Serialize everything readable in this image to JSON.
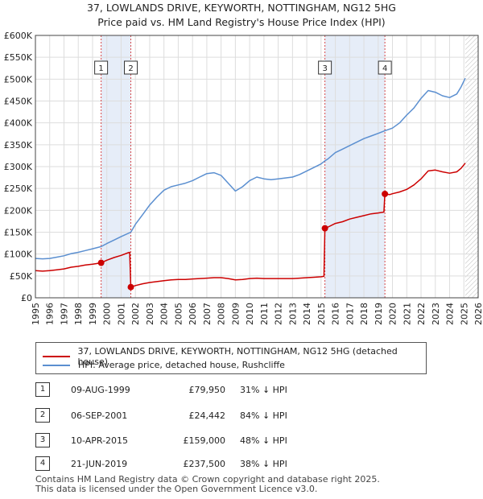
{
  "title": {
    "line1": "37, LOWLANDS DRIVE, KEYWORTH, NOTTINGHAM, NG12 5HG",
    "line2": "Price paid vs. HM Land Registry's House Price Index (HPI)"
  },
  "chart_data": {
    "type": "line",
    "title": "37, LOWLANDS DRIVE, KEYWORTH, NOTTINGHAM, NG12 5HG",
    "subtitle": "Price paid vs. HM Land Registry's House Price Index (HPI)",
    "xlim": [
      1995,
      2026
    ],
    "ylim": [
      0,
      600000
    ],
    "x_ticks": [
      "1995",
      "1996",
      "1997",
      "1998",
      "1999",
      "2000",
      "2001",
      "2002",
      "2003",
      "2004",
      "2005",
      "2006",
      "2007",
      "2008",
      "2009",
      "2010",
      "2011",
      "2012",
      "2013",
      "2014",
      "2015",
      "2016",
      "2017",
      "2018",
      "2019",
      "2020",
      "2021",
      "2022",
      "2023",
      "2024",
      "2025",
      "2026"
    ],
    "y_ticks": [
      {
        "value": 0,
        "label": "£0"
      },
      {
        "value": 50000,
        "label": "£50K"
      },
      {
        "value": 100000,
        "label": "£100K"
      },
      {
        "value": 150000,
        "label": "£150K"
      },
      {
        "value": 200000,
        "label": "£200K"
      },
      {
        "value": 250000,
        "label": "£250K"
      },
      {
        "value": 300000,
        "label": "£300K"
      },
      {
        "value": 350000,
        "label": "£350K"
      },
      {
        "value": 400000,
        "label": "£400K"
      },
      {
        "value": 450000,
        "label": "£450K"
      },
      {
        "value": 500000,
        "label": "£500K"
      },
      {
        "value": 550000,
        "label": "£550K"
      },
      {
        "value": 600000,
        "label": "£600K"
      }
    ],
    "shaded_periods": [
      [
        1999.6,
        2001.68
      ],
      [
        2015.27,
        2019.47
      ]
    ],
    "future_hatch_start": 2025.1,
    "series": [
      {
        "name": "37, LOWLANDS DRIVE, KEYWORTH, NOTTINGHAM, NG12 5HG (detached house)",
        "color": "#cc0000",
        "points": [
          [
            1995.0,
            62000
          ],
          [
            1995.5,
            61000
          ],
          [
            1996.0,
            62000
          ],
          [
            1996.5,
            64000
          ],
          [
            1997.0,
            66000
          ],
          [
            1997.5,
            70000
          ],
          [
            1998.0,
            72000
          ],
          [
            1998.5,
            75000
          ],
          [
            1999.0,
            77000
          ],
          [
            1999.6,
            79950
          ],
          [
            2000.0,
            86000
          ],
          [
            2000.5,
            92000
          ],
          [
            2001.0,
            97000
          ],
          [
            2001.5,
            103000
          ],
          [
            2001.6,
            104000
          ],
          [
            2001.68,
            24442
          ],
          [
            2002.0,
            28000
          ],
          [
            2002.5,
            32000
          ],
          [
            2003.0,
            35000
          ],
          [
            2003.5,
            37000
          ],
          [
            2004.0,
            39000
          ],
          [
            2004.5,
            41000
          ],
          [
            2005.0,
            42000
          ],
          [
            2005.5,
            42000
          ],
          [
            2006.0,
            43000
          ],
          [
            2006.5,
            44000
          ],
          [
            2007.0,
            45000
          ],
          [
            2007.5,
            46000
          ],
          [
            2008.0,
            46000
          ],
          [
            2008.5,
            44000
          ],
          [
            2009.0,
            41000
          ],
          [
            2009.5,
            42000
          ],
          [
            2010.0,
            44000
          ],
          [
            2010.5,
            45000
          ],
          [
            2011.0,
            44000
          ],
          [
            2011.5,
            44000
          ],
          [
            2012.0,
            44000
          ],
          [
            2012.5,
            44000
          ],
          [
            2013.0,
            44000
          ],
          [
            2013.5,
            45000
          ],
          [
            2014.0,
            46000
          ],
          [
            2014.5,
            47000
          ],
          [
            2015.0,
            48000
          ],
          [
            2015.2,
            49000
          ],
          [
            2015.27,
            159000
          ],
          [
            2015.5,
            162000
          ],
          [
            2016.0,
            170000
          ],
          [
            2016.5,
            174000
          ],
          [
            2017.0,
            180000
          ],
          [
            2017.5,
            184000
          ],
          [
            2018.0,
            188000
          ],
          [
            2018.5,
            192000
          ],
          [
            2019.0,
            194000
          ],
          [
            2019.4,
            196000
          ],
          [
            2019.47,
            237500
          ],
          [
            2019.8,
            236000
          ],
          [
            2020.0,
            238000
          ],
          [
            2020.5,
            242000
          ],
          [
            2021.0,
            248000
          ],
          [
            2021.5,
            258000
          ],
          [
            2022.0,
            272000
          ],
          [
            2022.5,
            290000
          ],
          [
            2023.0,
            292000
          ],
          [
            2023.5,
            288000
          ],
          [
            2024.0,
            285000
          ],
          [
            2024.5,
            288000
          ],
          [
            2024.8,
            296000
          ],
          [
            2025.1,
            308000
          ]
        ]
      },
      {
        "name": "HPI: Average price, detached house, Rushcliffe",
        "color": "#5b8fd0",
        "points": [
          [
            1995.0,
            90000
          ],
          [
            1995.5,
            89000
          ],
          [
            1996.0,
            90000
          ],
          [
            1996.5,
            93000
          ],
          [
            1997.0,
            96000
          ],
          [
            1997.5,
            101000
          ],
          [
            1998.0,
            104000
          ],
          [
            1998.5,
            108000
          ],
          [
            1999.0,
            112000
          ],
          [
            1999.6,
            117000
          ],
          [
            2000.0,
            124000
          ],
          [
            2000.5,
            132000
          ],
          [
            2001.0,
            140000
          ],
          [
            2001.68,
            150000
          ],
          [
            2002.0,
            168000
          ],
          [
            2002.5,
            190000
          ],
          [
            2003.0,
            212000
          ],
          [
            2003.5,
            230000
          ],
          [
            2004.0,
            246000
          ],
          [
            2004.5,
            254000
          ],
          [
            2005.0,
            258000
          ],
          [
            2005.5,
            262000
          ],
          [
            2006.0,
            268000
          ],
          [
            2006.5,
            276000
          ],
          [
            2007.0,
            284000
          ],
          [
            2007.5,
            286000
          ],
          [
            2008.0,
            280000
          ],
          [
            2008.5,
            262000
          ],
          [
            2009.0,
            244000
          ],
          [
            2009.5,
            254000
          ],
          [
            2010.0,
            268000
          ],
          [
            2010.5,
            276000
          ],
          [
            2011.0,
            272000
          ],
          [
            2011.5,
            270000
          ],
          [
            2012.0,
            272000
          ],
          [
            2012.5,
            274000
          ],
          [
            2013.0,
            276000
          ],
          [
            2013.5,
            282000
          ],
          [
            2014.0,
            290000
          ],
          [
            2014.5,
            298000
          ],
          [
            2015.0,
            306000
          ],
          [
            2015.27,
            313000
          ],
          [
            2015.5,
            318000
          ],
          [
            2016.0,
            332000
          ],
          [
            2016.5,
            340000
          ],
          [
            2017.0,
            348000
          ],
          [
            2017.5,
            356000
          ],
          [
            2018.0,
            364000
          ],
          [
            2018.5,
            370000
          ],
          [
            2019.0,
            376000
          ],
          [
            2019.47,
            382000
          ],
          [
            2020.0,
            388000
          ],
          [
            2020.5,
            400000
          ],
          [
            2021.0,
            418000
          ],
          [
            2021.5,
            434000
          ],
          [
            2022.0,
            456000
          ],
          [
            2022.5,
            474000
          ],
          [
            2023.0,
            470000
          ],
          [
            2023.5,
            462000
          ],
          [
            2024.0,
            458000
          ],
          [
            2024.5,
            466000
          ],
          [
            2024.8,
            482000
          ],
          [
            2025.1,
            502000
          ]
        ]
      }
    ],
    "sales": [
      {
        "id": "1",
        "x": 1999.6,
        "price": 79950
      },
      {
        "id": "2",
        "x": 2001.68,
        "price": 24442
      },
      {
        "id": "3",
        "x": 2015.27,
        "price": 159000
      },
      {
        "id": "4",
        "x": 2019.47,
        "price": 237500
      }
    ]
  },
  "legend": {
    "property_label": "37, LOWLANDS DRIVE, KEYWORTH, NOTTINGHAM, NG12 5HG (detached house)",
    "hpi_label": "HPI: Average price, detached house, Rushcliffe"
  },
  "sales_table": [
    {
      "id": "1",
      "date": "09-AUG-1999",
      "price": "£79,950",
      "hpi": "31% ↓ HPI"
    },
    {
      "id": "2",
      "date": "06-SEP-2001",
      "price": "£24,442",
      "hpi": "84% ↓ HPI"
    },
    {
      "id": "3",
      "date": "10-APR-2015",
      "price": "£159,000",
      "hpi": "48% ↓ HPI"
    },
    {
      "id": "4",
      "date": "21-JUN-2019",
      "price": "£237,500",
      "hpi": "38% ↓ HPI"
    }
  ],
  "footer": {
    "line1": "Contains HM Land Registry data © Crown copyright and database right 2025.",
    "line2": "This data is licensed under the Open Government Licence v3.0."
  }
}
